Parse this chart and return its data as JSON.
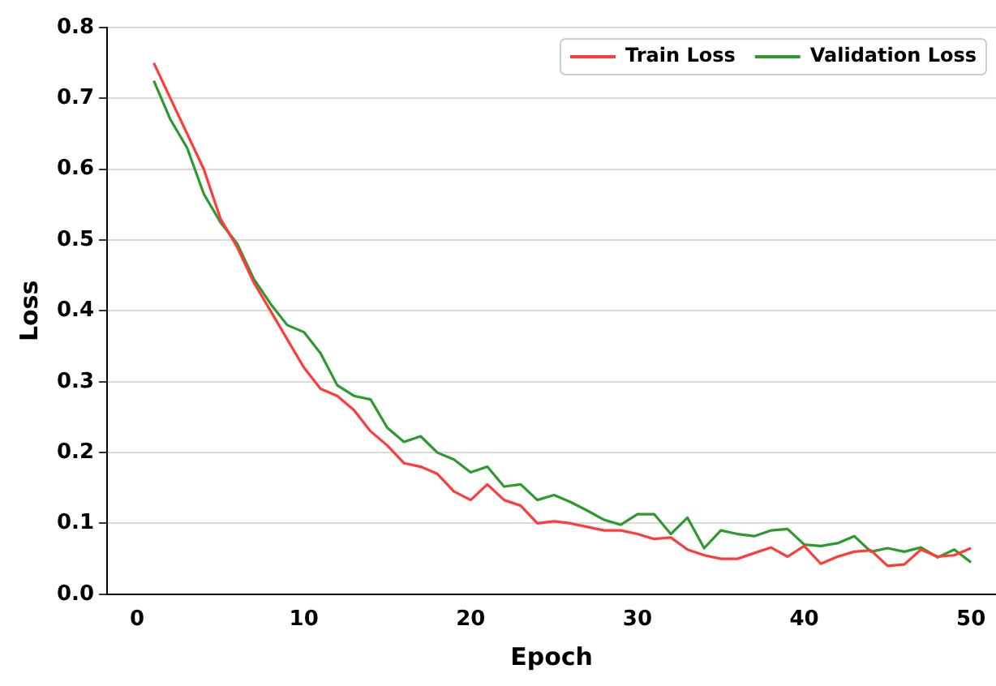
{
  "chart_data": {
    "type": "line",
    "xlabel": "Epoch",
    "ylabel": "Loss",
    "x": [
      1,
      2,
      3,
      4,
      5,
      6,
      7,
      8,
      9,
      10,
      11,
      12,
      13,
      14,
      15,
      16,
      17,
      18,
      19,
      20,
      21,
      22,
      23,
      24,
      25,
      26,
      27,
      28,
      29,
      30,
      31,
      32,
      33,
      34,
      35,
      36,
      37,
      38,
      39,
      40,
      41,
      42,
      43,
      44,
      45,
      46,
      47,
      48,
      49,
      50
    ],
    "series": [
      {
        "name": "Train Loss",
        "color": "#ff3b3b",
        "values": [
          0.75,
          0.7,
          0.65,
          0.6,
          0.53,
          0.49,
          0.44,
          0.4,
          0.36,
          0.32,
          0.29,
          0.28,
          0.26,
          0.23,
          0.21,
          0.185,
          0.18,
          0.17,
          0.145,
          0.133,
          0.155,
          0.133,
          0.125,
          0.1,
          0.103,
          0.1,
          0.095,
          0.09,
          0.09,
          0.085,
          0.078,
          0.08,
          0.063,
          0.055,
          0.05,
          0.05,
          0.058,
          0.066,
          0.053,
          0.068,
          0.043,
          0.053,
          0.06,
          0.062,
          0.04,
          0.042,
          0.063,
          0.053,
          0.055,
          0.065
        ]
      },
      {
        "name": "Validation Loss",
        "color": "#2e9a2e",
        "values": [
          0.725,
          0.67,
          0.63,
          0.565,
          0.525,
          0.495,
          0.445,
          0.41,
          0.38,
          0.37,
          0.34,
          0.295,
          0.28,
          0.275,
          0.235,
          0.215,
          0.223,
          0.2,
          0.19,
          0.172,
          0.18,
          0.152,
          0.155,
          0.133,
          0.14,
          0.13,
          0.118,
          0.105,
          0.098,
          0.113,
          0.113,
          0.085,
          0.108,
          0.065,
          0.09,
          0.085,
          0.082,
          0.09,
          0.092,
          0.07,
          0.068,
          0.072,
          0.082,
          0.06,
          0.065,
          0.06,
          0.066,
          0.052,
          0.063,
          0.045
        ]
      }
    ],
    "xlim": [
      -1.8,
      51.5
    ],
    "xticks": [
      0,
      10,
      20,
      30,
      40,
      50
    ],
    "ylim": [
      0,
      0.8
    ],
    "yticks": [
      {
        "value": 0,
        "label": "0.0"
      },
      {
        "value": 0.1,
        "label": "0.1"
      },
      {
        "value": 0.2,
        "label": "0.2"
      },
      {
        "value": 0.3,
        "label": "0.3"
      },
      {
        "value": 0.4,
        "label": "0.4"
      },
      {
        "value": 0.5,
        "label": "0.5"
      },
      {
        "value": 0.6,
        "label": "0.6"
      },
      {
        "value": 0.7,
        "label": "0.7"
      },
      {
        "value": 0.8,
        "label": "0.8"
      }
    ],
    "grid": "y",
    "legend": "top right",
    "marker": "none",
    "line_style": "solid"
  }
}
